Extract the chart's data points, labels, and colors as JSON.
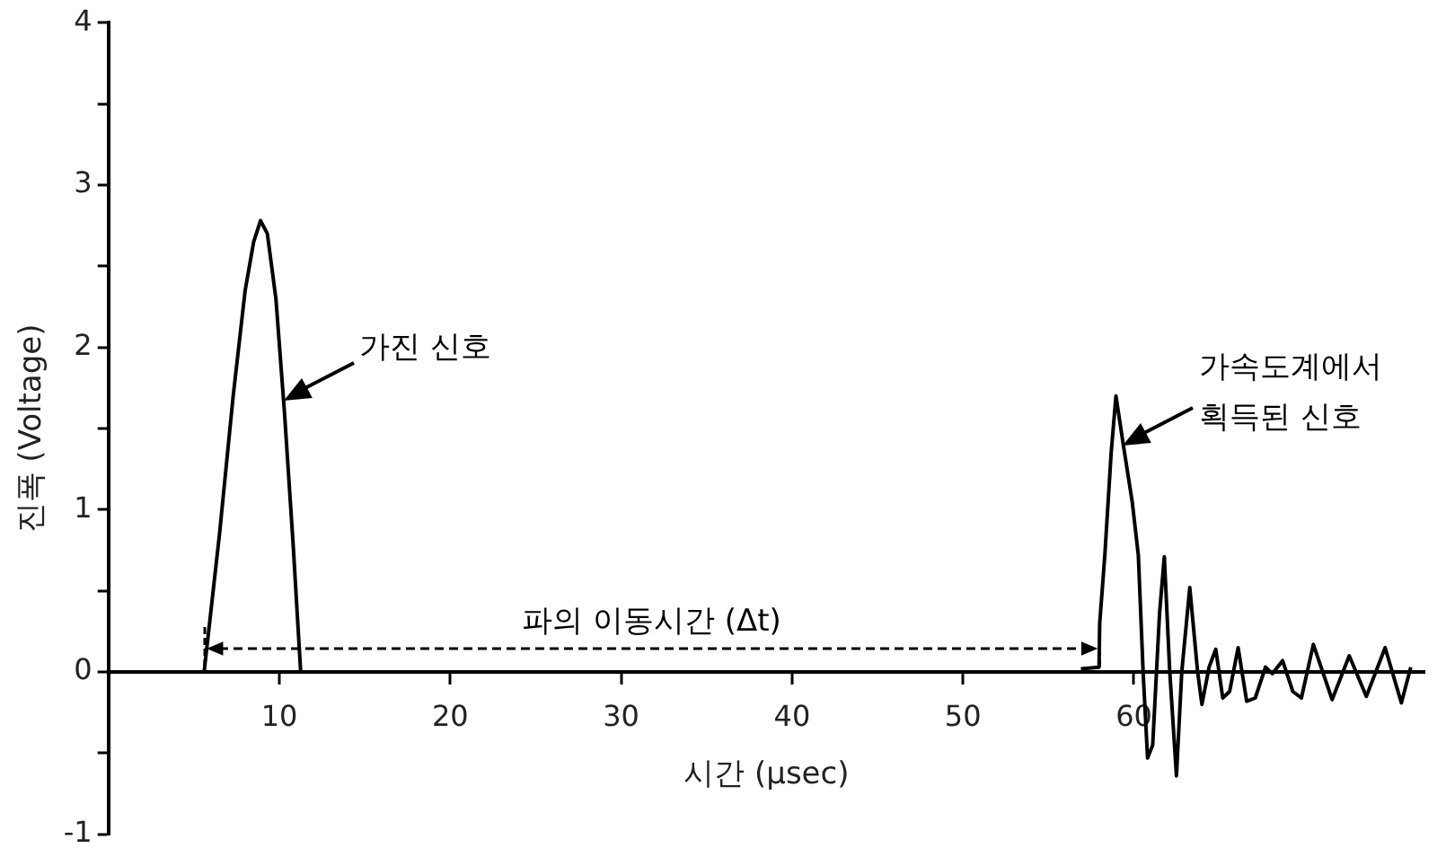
{
  "chart_data": {
    "type": "line",
    "xlabel": "시간 (μsec)",
    "ylabel": "진폭 (Voltage)",
    "xlim": [
      0,
      77
    ],
    "xticks": [
      10,
      20,
      30,
      40,
      50,
      60
    ],
    "ylim": [
      -1,
      4
    ],
    "yticks": [
      -1,
      {
        "value": -0.5,
        "label": null
      },
      0,
      {
        "value": 0.5,
        "label": null
      },
      1,
      {
        "value": 1.5,
        "label": null
      },
      2,
      {
        "value": 2.5,
        "label": null
      },
      3,
      {
        "value": 3.5,
        "label": null
      },
      4
    ],
    "grid": false,
    "legend": false,
    "marker": "none",
    "line_style": "solid",
    "series": [
      {
        "color": "#000000",
        "x": [
          5.6,
          6.5,
          7.3,
          8.0,
          8.5,
          8.9,
          9.3,
          9.8,
          10.3,
          10.8,
          11.25
        ],
        "values": [
          0,
          0.85,
          1.7,
          2.35,
          2.65,
          2.78,
          2.7,
          2.3,
          1.6,
          0.8,
          0
        ]
      },
      {
        "color": "#000000",
        "x": [
          56.9,
          57.96,
          58.0,
          58.3,
          58.67,
          58.95,
          59.38,
          59.9,
          60.26,
          60.54,
          60.8,
          61.1,
          61.5,
          61.78,
          62.1,
          62.49,
          62.8,
          63.27,
          63.73,
          63.98,
          64.4,
          64.79,
          65.2,
          65.6,
          66.1,
          66.6,
          67.1,
          67.7,
          68.1,
          68.7,
          69.3,
          69.8,
          70.5,
          71.6,
          72.6,
          73.6,
          74.7,
          75.65,
          76.2
        ],
        "values": [
          0.02,
          0.03,
          0.3,
          0.72,
          1.35,
          1.7,
          1.4,
          1.05,
          0.72,
          0,
          -0.53,
          -0.45,
          0.36,
          0.71,
          0,
          -0.64,
          0,
          0.52,
          0,
          -0.2,
          0.03,
          0.14,
          -0.16,
          -0.12,
          0.15,
          -0.18,
          -0.16,
          0.03,
          -0.01,
          0.07,
          -0.12,
          -0.16,
          0.17,
          -0.17,
          0.1,
          -0.15,
          0.15,
          -0.19,
          0.03
        ]
      }
    ],
    "annotations": [
      "가진 신호",
      "가속도계에서\n획득된 신호",
      "파의 이동시간 (Δt)"
    ]
  }
}
